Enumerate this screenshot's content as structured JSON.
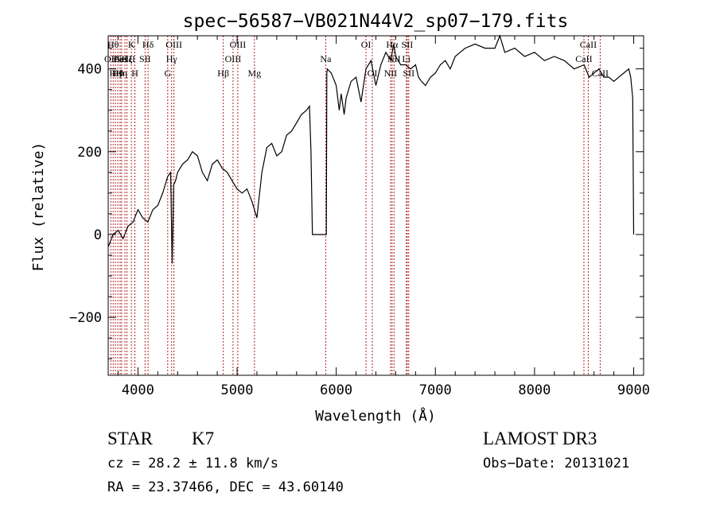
{
  "chart_data": {
    "type": "line",
    "title": "spec−56587−VB021N44V2_sp07−179.fits",
    "xlabel": "Wavelength (Å)",
    "ylabel": "Flux (relative)",
    "xlim": [
      3700,
      9100
    ],
    "ylim": [
      -340,
      480
    ],
    "x_ticks": [
      4000,
      5000,
      6000,
      7000,
      8000,
      9000
    ],
    "y_ticks": [
      -200,
      0,
      200,
      400
    ],
    "x_tick_labels": [
      "4000",
      "5000",
      "6000",
      "7000",
      "8000",
      "9000"
    ],
    "y_tick_labels": [
      "−200",
      "0",
      "200",
      "400"
    ],
    "grid": false,
    "line_color": "#000000",
    "marker_color": "#b22222",
    "series": [
      {
        "x": [
          3700,
          3750,
          3800,
          3850,
          3900,
          3950,
          4000,
          4050,
          4100,
          4150,
          4200,
          4250,
          4300,
          4330,
          4345,
          4360,
          4380,
          4400,
          4450,
          4500,
          4550,
          4600,
          4650,
          4700,
          4750,
          4800,
          4850,
          4900,
          4950,
          5000,
          5050,
          5100,
          5150,
          5200,
          5250,
          5300,
          5350,
          5400,
          5450,
          5500,
          5550,
          5600,
          5650,
          5700,
          5730,
          5745,
          5760,
          5800,
          5850,
          5880,
          5900,
          5905,
          5910,
          5950,
          6000,
          6030,
          6050,
          6080,
          6100,
          6150,
          6200,
          6250,
          6300,
          6350,
          6400,
          6450,
          6500,
          6550,
          6580,
          6600,
          6650,
          6700,
          6750,
          6800,
          6830,
          6860,
          6900,
          6950,
          7000,
          7050,
          7100,
          7150,
          7200,
          7250,
          7300,
          7400,
          7500,
          7600,
          7650,
          7700,
          7800,
          7900,
          8000,
          8100,
          8200,
          8300,
          8400,
          8500,
          8550,
          8600,
          8650,
          8700,
          8750,
          8800,
          8850,
          8900,
          8950,
          8970,
          8990,
          9000
        ],
        "y": [
          -30,
          0,
          10,
          -10,
          20,
          30,
          60,
          40,
          30,
          60,
          70,
          100,
          140,
          150,
          -70,
          120,
          130,
          150,
          170,
          180,
          200,
          190,
          150,
          130,
          170,
          180,
          160,
          150,
          130,
          110,
          100,
          110,
          80,
          40,
          150,
          210,
          220,
          190,
          200,
          240,
          250,
          270,
          290,
          300,
          310,
          200,
          0,
          0,
          0,
          0,
          0,
          390,
          400,
          390,
          360,
          300,
          340,
          290,
          330,
          370,
          380,
          320,
          400,
          420,
          360,
          410,
          440,
          420,
          460,
          430,
          410,
          410,
          400,
          410,
          380,
          370,
          360,
          380,
          390,
          410,
          420,
          400,
          430,
          440,
          450,
          460,
          450,
          450,
          480,
          440,
          450,
          430,
          440,
          420,
          430,
          420,
          400,
          410,
          380,
          390,
          400,
          380,
          380,
          370,
          380,
          390,
          400,
          380,
          330,
          0
        ]
      }
    ],
    "line_markers": [
      {
        "wave": 3727,
        "label": "OII",
        "row": 1
      },
      {
        "wave": 3750,
        "label": "Hθ",
        "row": 0
      },
      {
        "wave": 3772,
        "label": "Hη",
        "row": 2
      },
      {
        "wave": 3797,
        "label": "Hθ",
        "row": 2
      },
      {
        "wave": 3820,
        "label": "HeI",
        "row": 1
      },
      {
        "wave": 3835,
        "label": "Hη",
        "row": 2
      },
      {
        "wave": 3869,
        "label": "NeIII",
        "row": 1
      },
      {
        "wave": 3889,
        "label": "Hζ",
        "row": 1
      },
      {
        "wave": 3934,
        "label": "K",
        "row": 0
      },
      {
        "wave": 3969,
        "label": "H",
        "row": 2
      },
      {
        "wave": 4072,
        "label": "SII",
        "row": 1
      },
      {
        "wave": 4102,
        "label": "Hδ",
        "row": 0
      },
      {
        "wave": 4300,
        "label": "G",
        "row": 2
      },
      {
        "wave": 4340,
        "label": "Hγ",
        "row": 1
      },
      {
        "wave": 4363,
        "label": "OIII",
        "row": 0
      },
      {
        "wave": 4861,
        "label": "Hβ",
        "row": 2
      },
      {
        "wave": 4959,
        "label": "OIII",
        "row": 1
      },
      {
        "wave": 5007,
        "label": "OIII",
        "row": 0
      },
      {
        "wave": 5175,
        "label": "Mg",
        "row": 2
      },
      {
        "wave": 5894,
        "label": "Na",
        "row": 1
      },
      {
        "wave": 6300,
        "label": "OI",
        "row": 0
      },
      {
        "wave": 6364,
        "label": "OI",
        "row": 2
      },
      {
        "wave": 6548,
        "label": "NII",
        "row": 2
      },
      {
        "wave": 6563,
        "label": "Hα",
        "row": 0
      },
      {
        "wave": 6583,
        "label": "NII",
        "row": 1
      },
      {
        "wave": 6707,
        "label": "Li",
        "row": 1
      },
      {
        "wave": 6716,
        "label": "SII",
        "row": 0
      },
      {
        "wave": 6731,
        "label": "SII",
        "row": 2
      },
      {
        "wave": 8498,
        "label": "CaII",
        "row": 1
      },
      {
        "wave": 8542,
        "label": "CaII",
        "row": 0
      },
      {
        "wave": 8662,
        "label": "CaII",
        "row": 2
      }
    ]
  },
  "info": {
    "class": "STAR",
    "subclass": "K7",
    "survey": "LAMOST DR3",
    "cz": "cz = 28.2 ± 11.8 km/s",
    "obs_date": "Obs−Date: 20131021",
    "coords": "RA =  23.37466, DEC =  43.60140"
  }
}
